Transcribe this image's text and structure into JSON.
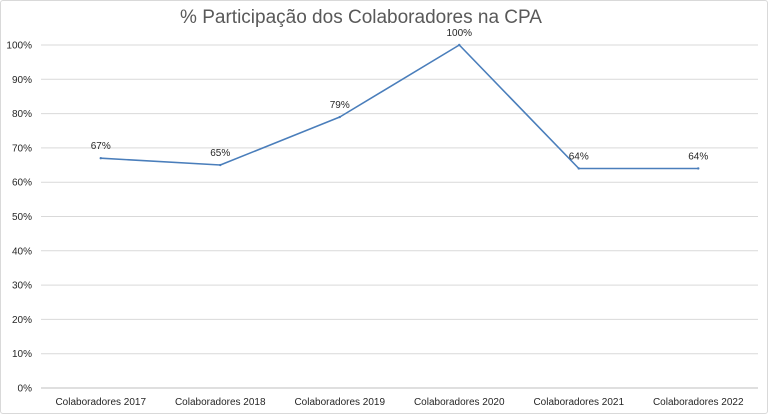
{
  "chart_data": {
    "type": "line",
    "title": "% Participação dos Colaboradores na CPA",
    "categories": [
      "Colaboradores 2017",
      "Colaboradores 2018",
      "Colaboradores 2019",
      "Colaboradores 2020",
      "Colaboradores 2021",
      "Colaboradores 2022"
    ],
    "series": [
      {
        "values": [
          67,
          65,
          79,
          100,
          64,
          64
        ],
        "labels": [
          "67%",
          "65%",
          "79%",
          "100%",
          "64%",
          "64%"
        ],
        "color": "#4a7ebb"
      }
    ],
    "yticks": [
      "0%",
      "10%",
      "20%",
      "30%",
      "40%",
      "50%",
      "60%",
      "70%",
      "80%",
      "90%",
      "100%"
    ],
    "ylim": [
      0,
      100
    ],
    "xlabel": "",
    "ylabel": "",
    "grid": true,
    "legend": "none"
  }
}
